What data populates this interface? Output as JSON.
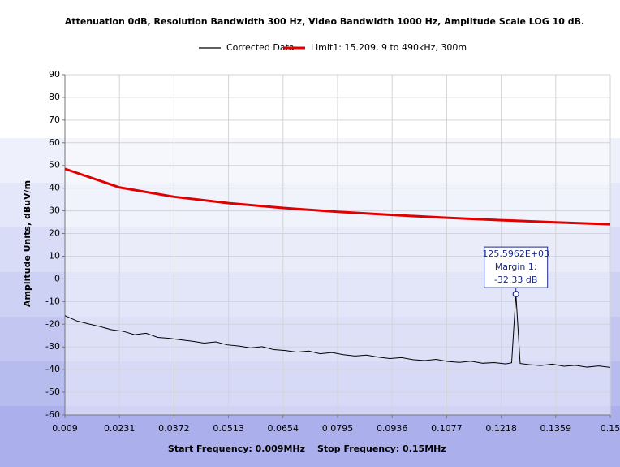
{
  "chart_data": {
    "type": "line",
    "title": "Attenuation 0dB, Resolution Bandwidth 300 Hz, Video Bandwidth 1000 Hz, Amplitude Scale LOG 10 dB.",
    "ylabel": "Amplitude Units, dBuV/m",
    "footer": [
      "Start Frequency: 0.009MHz",
      "Stop Frequency: 0.15MHz"
    ],
    "xlim": [
      0.009,
      0.15
    ],
    "xticks": [
      0.009,
      0.0231,
      0.0372,
      0.0513,
      0.0654,
      0.0795,
      0.0936,
      0.1077,
      0.1218,
      0.1359,
      0.15
    ],
    "ylim": [
      -60,
      90
    ],
    "yticks": [
      -60,
      -50,
      -40,
      -30,
      -20,
      -10,
      0,
      10,
      20,
      30,
      40,
      50,
      60,
      70,
      80,
      90
    ],
    "grid": true,
    "legend": "top",
    "series": [
      {
        "name": "Corrected Data",
        "color": "#000000",
        "x": [
          0.009,
          0.012,
          0.015,
          0.018,
          0.021,
          0.024,
          0.027,
          0.03,
          0.033,
          0.036,
          0.039,
          0.042,
          0.045,
          0.048,
          0.051,
          0.054,
          0.057,
          0.06,
          0.063,
          0.066,
          0.069,
          0.072,
          0.075,
          0.078,
          0.081,
          0.084,
          0.087,
          0.09,
          0.093,
          0.096,
          0.099,
          0.102,
          0.105,
          0.108,
          0.111,
          0.114,
          0.117,
          0.12,
          0.123,
          0.1245,
          0.1256,
          0.1267,
          0.129,
          0.132,
          0.135,
          0.138,
          0.141,
          0.144,
          0.147,
          0.15
        ],
        "values": [
          -16.2,
          -18.5,
          -19.8,
          -21.0,
          -22.4,
          -23.1,
          -24.6,
          -24.0,
          -25.8,
          -26.2,
          -26.9,
          -27.5,
          -28.3,
          -27.8,
          -29.1,
          -29.6,
          -30.4,
          -29.9,
          -31.2,
          -31.6,
          -32.3,
          -31.8,
          -33.0,
          -32.5,
          -33.4,
          -34.0,
          -33.6,
          -34.5,
          -35.1,
          -34.7,
          -35.6,
          -36.0,
          -35.5,
          -36.4,
          -36.8,
          -36.3,
          -37.2,
          -36.9,
          -37.5,
          -37.0,
          -6.7,
          -37.3,
          -37.8,
          -38.2,
          -37.6,
          -38.5,
          -38.1,
          -38.9,
          -38.4,
          -39.0
        ]
      },
      {
        "name": "Limit1: 15.209, 9 to 490kHz, 300m",
        "color": "#e00000",
        "x": [
          0.009,
          0.0231,
          0.0372,
          0.0513,
          0.0654,
          0.0795,
          0.0936,
          0.1077,
          0.1218,
          0.1359,
          0.15
        ],
        "values": [
          48.52,
          40.33,
          36.19,
          33.4,
          31.29,
          29.6,
          28.18,
          26.96,
          25.89,
          24.94,
          24.08
        ]
      }
    ],
    "annotation": {
      "lines": [
        "125.5962E+03",
        "Margin 1:",
        "-32.33 dB"
      ]
    }
  }
}
